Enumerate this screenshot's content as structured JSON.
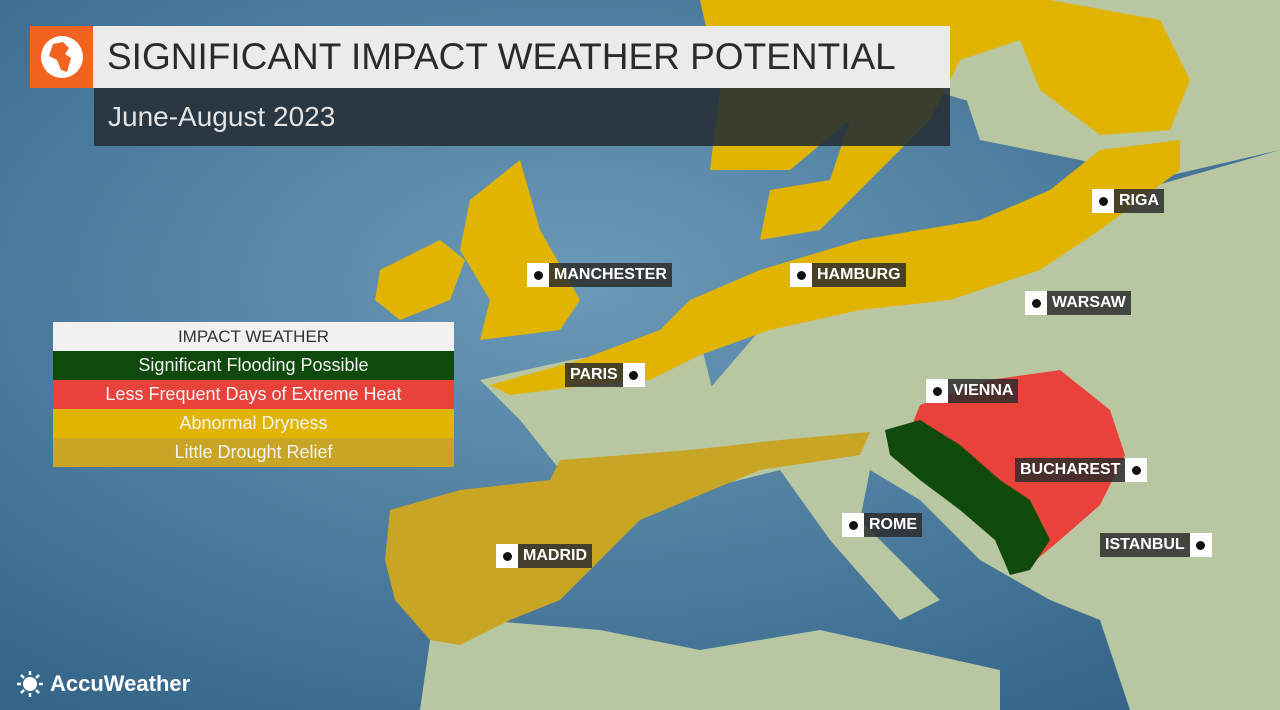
{
  "header": {
    "title": "SIGNIFICANT IMPACT WEATHER POTENTIAL",
    "subtitle": "June-August 2023",
    "icon": "globe-icon",
    "icon_color": "#f26322"
  },
  "legend": {
    "title": "IMPACT WEATHER",
    "items": [
      {
        "label": "Significant Flooding Possible",
        "color": "#0f4a0c"
      },
      {
        "label": "Less Frequent Days of Extreme Heat",
        "color": "#e8423a"
      },
      {
        "label": "Abnormal Dryness",
        "color": "#e0b400"
      },
      {
        "label": "Little Drought Relief",
        "color": "#c9a525"
      }
    ]
  },
  "cities": [
    "MANCHESTER",
    "HAMBURG",
    "RIGA",
    "WARSAW",
    "PARIS",
    "VIENNA",
    "BUCHAREST",
    "ROME",
    "MADRID",
    "ISTANBUL"
  ],
  "brand": {
    "name": "AccuWeather",
    "icon": "sun-icon"
  }
}
